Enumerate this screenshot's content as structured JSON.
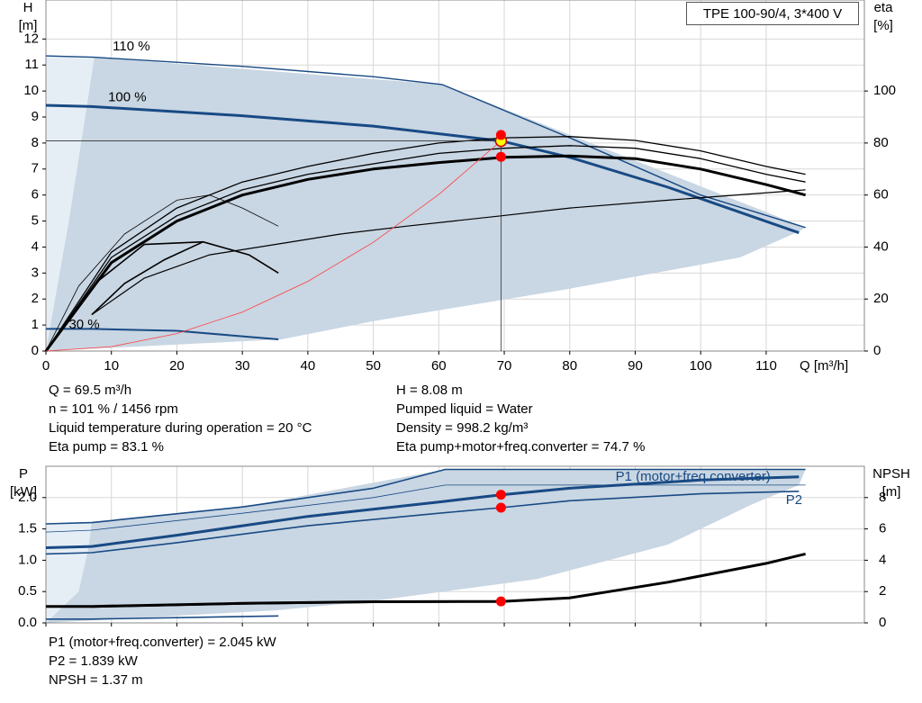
{
  "chart_title": "TPE 100-90/4, 3*400 V",
  "colors": {
    "curve": "#184a84",
    "band": "#c9d6e3",
    "band_light": "#e6eef5",
    "black": "#000000",
    "system": "#ff4040",
    "point_fill": "#ffff00",
    "point_red": "#ff0000"
  },
  "info_top": {
    "col1": [
      "Q = 69.5 m³/h",
      "n = 101 % / 1456 rpm",
      "Liquid temperature during operation = 20 °C",
      "Eta pump = 83.1 %"
    ],
    "col2": [
      "H = 8.08 m",
      "Pumped liquid = Water",
      "Density = 998.2 kg/m³",
      "Eta pump+motor+freq.converter = 74.7 %"
    ]
  },
  "info_bottom": [
    "P1 (motor+freq.converter) = 2.045 kW",
    "P2 = 1.839 kW",
    "NPSH = 1.37 m"
  ],
  "chart_data": [
    {
      "type": "line",
      "name": "head-curve-chart",
      "title": "TPE 100-90/4, 3*400 V",
      "xlabel": "Q [m³/h]",
      "ylabel_left": [
        "H",
        "[m]"
      ],
      "ylabel_right": [
        "eta",
        "[%]"
      ],
      "xlim": [
        0,
        125
      ],
      "ylim": [
        0,
        13.5
      ],
      "eta_lim": [
        0,
        135
      ],
      "x_ticks": [
        0,
        10,
        20,
        30,
        40,
        50,
        60,
        70,
        80,
        90,
        100,
        110
      ],
      "y_ticks": [
        0,
        1,
        2,
        3,
        4,
        5,
        6,
        7,
        8,
        9,
        10,
        11,
        12
      ],
      "eta_ticks": [
        0,
        20,
        40,
        60,
        80,
        100
      ],
      "grid": true,
      "curve_labels": [
        {
          "text": "110 %",
          "x": 10.2,
          "y": 11.7
        },
        {
          "text": "100 %",
          "x": 9.5,
          "y": 9.75
        },
        {
          "text": "30 %",
          "x": 3.5,
          "y": 1.0
        }
      ],
      "band_outline": [
        [
          0,
          11.35
        ],
        [
          7.4,
          11.3
        ],
        [
          60.5,
          10.25
        ],
        [
          116,
          4.75
        ],
        [
          115,
          4.6
        ],
        [
          106,
          3.6
        ],
        [
          80,
          2.4
        ],
        [
          50,
          1.15
        ],
        [
          36,
          0.45
        ],
        [
          0,
          0
        ]
      ],
      "band_light_outline": [
        [
          0,
          11.35
        ],
        [
          7.4,
          11.3
        ],
        [
          6,
          9
        ],
        [
          3.5,
          5
        ],
        [
          0,
          0
        ]
      ],
      "head_series": [
        {
          "name": "110 %",
          "points": [
            [
              0,
              11.35
            ],
            [
              7.4,
              11.3
            ],
            [
              30,
              10.95
            ],
            [
              50,
              10.55
            ],
            [
              60.5,
              10.25
            ],
            [
              80,
              8.2
            ],
            [
              100,
              6.0
            ],
            [
              116,
              4.75
            ]
          ],
          "width": 1.4
        },
        {
          "name": "100 %",
          "points": [
            [
              0,
              9.45
            ],
            [
              7,
              9.4
            ],
            [
              30,
              9.05
            ],
            [
              50,
              8.65
            ],
            [
              69.5,
              8.08
            ],
            [
              80,
              7.45
            ],
            [
              95,
              6.3
            ],
            [
              115,
              4.55
            ]
          ],
          "width": 3
        },
        {
          "name": "30 %",
          "points": [
            [
              0,
              0.85
            ],
            [
              7,
              0.85
            ],
            [
              20,
              0.78
            ],
            [
              35.5,
              0.45
            ]
          ],
          "width": 2
        }
      ],
      "system_curve": [
        [
          0,
          0
        ],
        [
          10,
          0.17
        ],
        [
          20,
          0.67
        ],
        [
          30,
          1.5
        ],
        [
          40,
          2.68
        ],
        [
          50,
          4.18
        ],
        [
          60,
          6.02
        ],
        [
          69.5,
          8.08
        ]
      ],
      "eta_series": [
        {
          "points": [
            [
              0,
              0
            ],
            [
              10,
              38
            ],
            [
              20,
              55
            ],
            [
              30,
              65
            ],
            [
              40,
              71
            ],
            [
              50,
              76
            ],
            [
              60,
              80
            ],
            [
              70,
              82
            ],
            [
              80,
              82.5
            ],
            [
              90,
              81
            ],
            [
              100,
              77
            ],
            [
              110,
              71
            ],
            [
              116,
              68
            ]
          ],
          "width": 1.3
        },
        {
          "points": [
            [
              0,
              0
            ],
            [
              10,
              36
            ],
            [
              20,
              52
            ],
            [
              30,
              62
            ],
            [
              40,
              68
            ],
            [
              50,
              72
            ],
            [
              60,
              76
            ],
            [
              70,
              78
            ],
            [
              80,
              79
            ],
            [
              90,
              78
            ],
            [
              100,
              74
            ],
            [
              110,
              68
            ],
            [
              116,
              65
            ]
          ],
          "width": 1.3
        },
        {
          "points": [
            [
              0,
              0
            ],
            [
              10,
              34
            ],
            [
              20,
              50
            ],
            [
              30,
              60
            ],
            [
              40,
              66
            ],
            [
              50,
              70
            ],
            [
              60,
              72.5
            ],
            [
              70,
              74.5
            ],
            [
              80,
              75
            ],
            [
              90,
              74
            ],
            [
              100,
              70
            ],
            [
              110,
              64
            ],
            [
              116,
              60
            ]
          ],
          "width": 3
        },
        {
          "points": [
            [
              7,
              14
            ],
            [
              15,
              28
            ],
            [
              25,
              37
            ],
            [
              35,
              41
            ],
            [
              45,
              45
            ],
            [
              55,
              48
            ],
            [
              69.5,
              52
            ],
            [
              80,
              55
            ],
            [
              95,
              58
            ],
            [
              116,
              62
            ]
          ],
          "width": 1.2
        },
        {
          "points": [
            [
              0,
              0
            ],
            [
              8,
              27
            ],
            [
              15,
              41
            ],
            [
              24,
              42
            ],
            [
              31,
              37
            ],
            [
              35.5,
              30
            ]
          ],
          "width": 1.6
        },
        {
          "points": [
            [
              0,
              0
            ],
            [
              5,
              25
            ],
            [
              12,
              45
            ],
            [
              20,
              58
            ],
            [
              25,
              60
            ],
            [
              30,
              55
            ],
            [
              35.5,
              48
            ]
          ],
          "width": 0.8
        },
        {
          "points": [
            [
              7,
              14
            ],
            [
              12,
              26
            ],
            [
              18,
              35
            ],
            [
              24,
              42
            ]
          ],
          "width": 1.6
        }
      ],
      "operating_points": [
        {
          "x": 69.5,
          "y": 8.08,
          "style": "yellow"
        },
        {
          "x": 69.5,
          "eta": 83.1,
          "style": "red"
        },
        {
          "x": 69.5,
          "eta": 74.7,
          "style": "red"
        }
      ]
    },
    {
      "type": "line",
      "name": "power-npsh-chart",
      "xlabel": "",
      "ylabel_left": [
        "P",
        "[kW]"
      ],
      "ylabel_right": [
        "NPSH",
        "[m]"
      ],
      "xlim": [
        0,
        125
      ],
      "ylim": [
        0,
        2.5
      ],
      "npsh_lim": [
        0,
        10
      ],
      "y_ticks": [
        0.0,
        0.5,
        1.0,
        1.5,
        2.0
      ],
      "y_tick_labels": [
        "0.0",
        "0.5",
        "1.0",
        "1.5",
        "2.0"
      ],
      "npsh_ticks": [
        0,
        2,
        4,
        6,
        8
      ],
      "grid": true,
      "series_labels": [
        {
          "text": "P1 (motor+freq.converter)",
          "x": 87,
          "y": 2.33
        },
        {
          "text": "P2",
          "x": 113,
          "y": 1.95
        }
      ],
      "band_outline": [
        [
          0,
          1.58
        ],
        [
          7,
          1.6
        ],
        [
          30,
          1.85
        ],
        [
          61,
          2.45
        ],
        [
          116,
          2.45
        ],
        [
          115,
          2.2
        ],
        [
          108,
          1.9
        ],
        [
          95,
          1.25
        ],
        [
          75,
          0.7
        ],
        [
          50,
          0.35
        ],
        [
          35,
          0.2
        ],
        [
          0,
          0
        ]
      ],
      "band_light_outline": [
        [
          0,
          1.58
        ],
        [
          7,
          1.6
        ],
        [
          6.5,
          1.2
        ],
        [
          5,
          0.5
        ],
        [
          0,
          0
        ]
      ],
      "power_series": [
        {
          "name": "P1 (motor+freq.converter)",
          "points": [
            [
              0,
              1.58
            ],
            [
              7,
              1.6
            ],
            [
              30,
              1.85
            ],
            [
              50,
              2.15
            ],
            [
              61,
              2.45
            ],
            [
              116,
              2.45
            ]
          ],
          "width": 1.6
        },
        {
          "name": "P1 (motor+freq.converter)",
          "points": [
            [
              0,
              1.2
            ],
            [
              7,
              1.22
            ],
            [
              20,
              1.4
            ],
            [
              40,
              1.7
            ],
            [
              60,
              1.93
            ],
            [
              69.5,
              2.045
            ],
            [
              80,
              2.15
            ],
            [
              100,
              2.28
            ],
            [
              115,
              2.33
            ]
          ],
          "width": 3
        },
        {
          "name": "P2",
          "points": [
            [
              0,
              1.1
            ],
            [
              7,
              1.12
            ],
            [
              20,
              1.28
            ],
            [
              40,
              1.55
            ],
            [
              60,
              1.75
            ],
            [
              69.5,
              1.839
            ],
            [
              80,
              1.95
            ],
            [
              100,
              2.06
            ],
            [
              115,
              2.1
            ]
          ],
          "width": 1.6
        },
        {
          "name": "",
          "points": [
            [
              0,
              1.45
            ],
            [
              7,
              1.48
            ],
            [
              30,
              1.75
            ],
            [
              50,
              2.0
            ],
            [
              61,
              2.2
            ],
            [
              100,
              2.2
            ],
            [
              116,
              2.2
            ]
          ],
          "width": 0.8
        },
        {
          "name": "",
          "points": [
            [
              0,
              0.06
            ],
            [
              7,
              0.06
            ],
            [
              35.5,
              0.11
            ]
          ],
          "width": 1.6
        }
      ],
      "npsh_series": [
        {
          "points": [
            [
              0,
              1.05
            ],
            [
              7,
              1.05
            ],
            [
              30,
              1.25
            ],
            [
              50,
              1.35
            ],
            [
              69.5,
              1.37
            ],
            [
              80,
              1.6
            ],
            [
              95,
              2.6
            ],
            [
              110,
              3.8
            ],
            [
              116,
              4.4
            ]
          ],
          "width": 3
        },
        {
          "points": [
            [
              7,
              1.0
            ],
            [
              30,
              1.2
            ],
            [
              50,
              1.3
            ],
            [
              69.5,
              1.33
            ]
          ],
          "width": 1.2
        }
      ],
      "operating_points": [
        {
          "x": 69.5,
          "p": 2.045,
          "style": "red"
        },
        {
          "x": 69.5,
          "p": 1.839,
          "style": "red"
        },
        {
          "x": 69.5,
          "npsh": 1.37,
          "style": "red"
        }
      ]
    }
  ]
}
